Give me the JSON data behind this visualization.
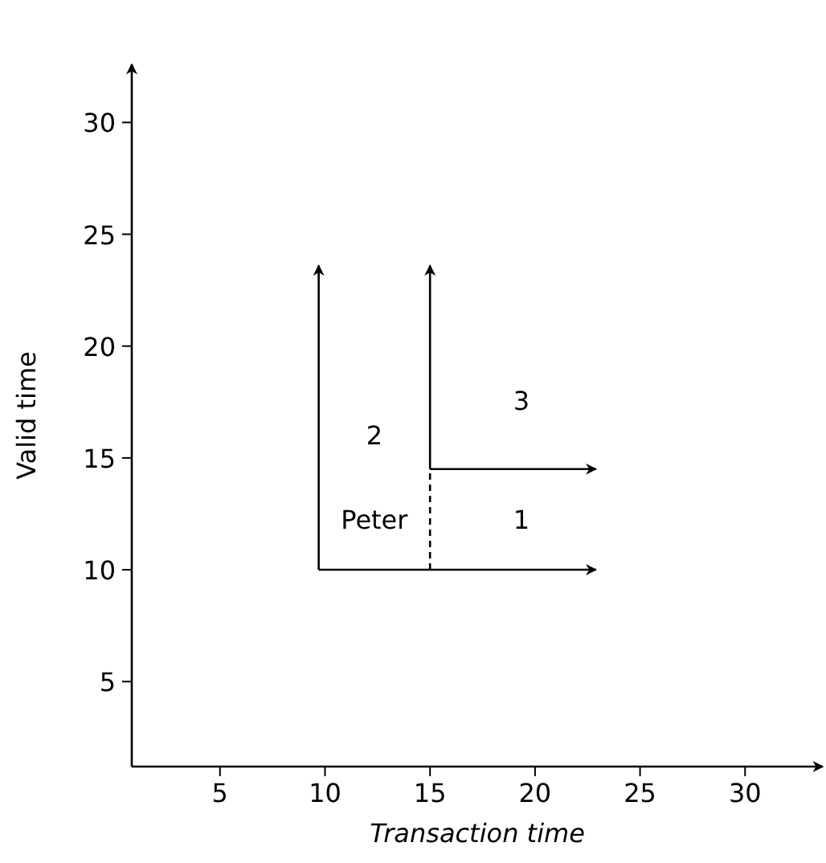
{
  "chart_data": {
    "type": "line",
    "xlabel": "Transaction time",
    "ylabel": "Valid time",
    "xlim": [
      0.8,
      33.7
    ],
    "ylim": [
      1.2,
      32.6
    ],
    "xticks": [
      5,
      10,
      15,
      20,
      25,
      30
    ],
    "yticks": [
      5,
      10,
      15,
      20,
      25,
      30
    ],
    "grid": false,
    "marker": "none",
    "series": [
      {
        "color": "#000000",
        "x": [
          9.7,
          9.7
        ],
        "values": [
          10,
          23.6
        ]
      },
      {
        "color": "#000000",
        "x": [
          9.7,
          22.9
        ],
        "values": [
          10,
          10
        ]
      },
      {
        "color": "#000000",
        "x": [
          15,
          15
        ],
        "values": [
          14.5,
          23.6
        ]
      },
      {
        "color": "#000000",
        "x": [
          15,
          22.9
        ],
        "values": [
          14.5,
          14.5
        ]
      },
      {
        "color": "#000000",
        "x": [
          15,
          15
        ],
        "values": [
          10,
          14.5
        ],
        "line_style": "dashed"
      }
    ],
    "annotations": [
      "2",
      "Peter",
      "1",
      "3"
    ]
  }
}
